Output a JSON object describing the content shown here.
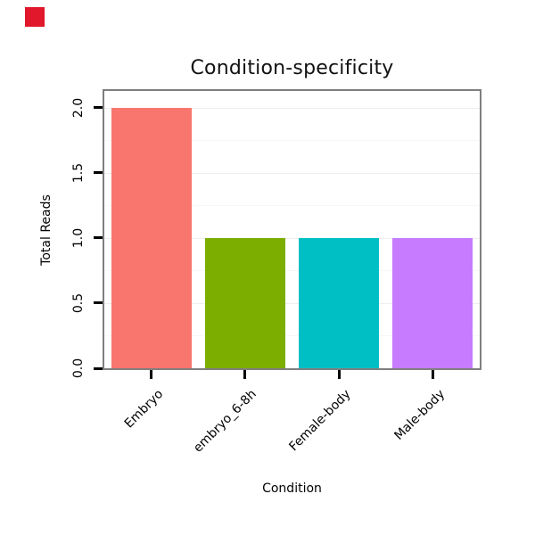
{
  "page": {
    "background": "#ffffff"
  },
  "marker": {
    "color": "#e1182b"
  },
  "style": {
    "panel_border": "#7f7f7f",
    "panel_border_width": 2,
    "tick_color": "#000000",
    "grid_major": "#eeeeee",
    "grid_minor": "#f7f7f7",
    "text_color": "#000000"
  },
  "chart_data": {
    "type": "bar",
    "title": "Condition-specificity",
    "xlabel": "Condition",
    "ylabel": "Total Reads",
    "categories": [
      "Embryo",
      "embryo_6-8h",
      "Female-body",
      "Male-body"
    ],
    "values": [
      2,
      1,
      1,
      1
    ],
    "bar_colors": [
      "#F8766D",
      "#7CAE00",
      "#00BFC4",
      "#C77CFF"
    ],
    "ylim": [
      0,
      2.13
    ],
    "yticks": [
      0.0,
      0.5,
      1.0,
      1.5,
      2.0
    ],
    "ytick_labels": [
      "0.0",
      "0.5",
      "1.0",
      "1.5",
      "2.0"
    ],
    "grid": true,
    "legend": "none"
  }
}
